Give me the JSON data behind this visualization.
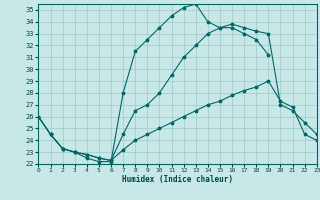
{
  "xlabel": "Humidex (Indice chaleur)",
  "background_color": "#c8e8e8",
  "grid_color": "#a0c8c8",
  "line_color": "#006666",
  "xlim": [
    0,
    23
  ],
  "ylim": [
    22,
    35.5
  ],
  "yticks": [
    22,
    23,
    24,
    25,
    26,
    27,
    28,
    29,
    30,
    31,
    32,
    33,
    34,
    35
  ],
  "xticks": [
    0,
    1,
    2,
    3,
    4,
    5,
    6,
    7,
    8,
    9,
    10,
    11,
    12,
    13,
    14,
    15,
    16,
    17,
    18,
    19,
    20,
    21,
    22,
    23
  ],
  "line1": {
    "x": [
      0,
      1,
      2,
      3,
      4,
      5,
      6,
      7,
      8,
      9,
      10,
      11,
      12,
      13,
      14,
      15,
      16,
      17,
      18,
      19
    ],
    "y": [
      26.0,
      24.5,
      23.3,
      23.0,
      22.5,
      22.2,
      22.2,
      28.0,
      31.5,
      32.5,
      33.5,
      34.5,
      35.2,
      35.5,
      34.0,
      33.5,
      33.5,
      33.0,
      32.5,
      31.2
    ]
  },
  "line2": {
    "x": [
      0,
      1,
      2,
      3,
      4,
      5,
      6,
      7,
      8,
      9,
      10,
      11,
      12,
      13,
      14,
      15,
      16,
      17,
      18,
      19,
      20,
      21,
      22,
      23
    ],
    "y": [
      26.0,
      24.5,
      23.3,
      23.0,
      22.8,
      22.5,
      22.3,
      24.5,
      26.5,
      27.0,
      28.0,
      29.5,
      31.0,
      32.0,
      33.0,
      33.5,
      33.8,
      33.5,
      33.2,
      33.0,
      27.0,
      26.5,
      25.5,
      24.5
    ]
  },
  "line3": {
    "x": [
      0,
      1,
      2,
      3,
      4,
      5,
      6,
      7,
      8,
      9,
      10,
      11,
      12,
      13,
      14,
      15,
      16,
      17,
      18,
      19,
      20,
      21,
      22,
      23
    ],
    "y": [
      26.0,
      24.5,
      23.3,
      23.0,
      22.8,
      22.5,
      22.3,
      23.2,
      24.0,
      24.5,
      25.0,
      25.5,
      26.0,
      26.5,
      27.0,
      27.3,
      27.8,
      28.2,
      28.5,
      29.0,
      27.3,
      26.8,
      24.5,
      24.0
    ]
  }
}
